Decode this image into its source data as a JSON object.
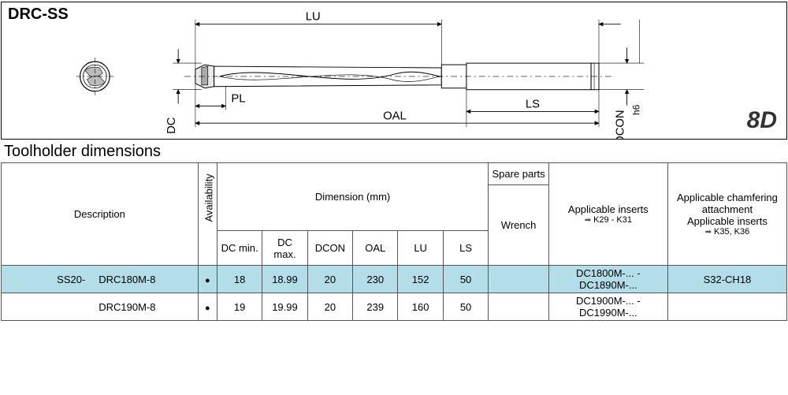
{
  "product_code": "DRC-SS",
  "badge": "8D",
  "diagram": {
    "labels": {
      "LU": "LU",
      "PL": "PL",
      "DC": "DC",
      "OAL": "OAL",
      "LS": "LS",
      "DCON": "DCON",
      "h6": "h6"
    },
    "stroke": "#000000",
    "fill_body": "#ffffff",
    "fill_dark": "#555555",
    "centerline_dash": "6,3,2,3"
  },
  "section_title": "Toolholder dimensions",
  "table": {
    "headers": {
      "description": "Description",
      "availability": "Availability",
      "dimension_group": "Dimension (mm)",
      "spare_parts": "Spare parts",
      "wrench": "Wrench",
      "applicable_inserts": "Applicable inserts",
      "inserts_ref": "K29 - K31",
      "chamfering_l1": "Applicable chamfering",
      "chamfering_l2": "attachment",
      "chamfering_l3": "Applicable inserts",
      "chamfering_ref": "K35, K36",
      "dim_cols": [
        "DC min.",
        "DC max.",
        "DCON",
        "OAL",
        "LU",
        "LS"
      ]
    },
    "rows": [
      {
        "highlight": true,
        "prefix": "SS20-",
        "model": "DRC180M-8",
        "avail": true,
        "dims": [
          "18",
          "18.99",
          "20",
          "230",
          "152",
          "50"
        ],
        "wrench": "",
        "inserts": "DC1800M-... - DC1890M-...",
        "chamfer": "S32-CH18"
      },
      {
        "highlight": false,
        "prefix": "",
        "model": "DRC190M-8",
        "avail": true,
        "dims": [
          "19",
          "19.99",
          "20",
          "239",
          "160",
          "50"
        ],
        "wrench": "",
        "inserts": "DC1900M-... - DC1990M-...",
        "chamfer": ""
      }
    ]
  },
  "colors": {
    "row_highlight": "#b2dde9",
    "border": "#555555",
    "background": "#ffffff"
  }
}
